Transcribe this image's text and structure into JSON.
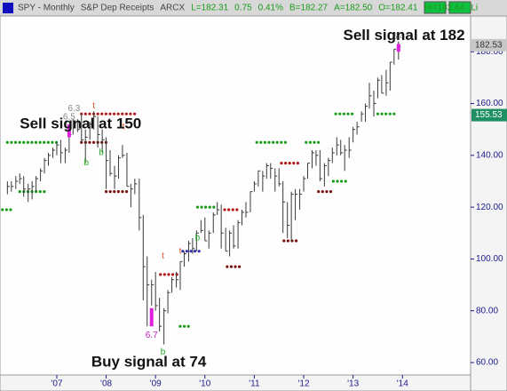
{
  "header": {
    "symbol": "SPY - Monthly",
    "name": "S&P Dep Receipts",
    "exchange": "ARCX",
    "quote": [
      "L=182.31",
      "0.75",
      "0.41%",
      "B=182.27",
      "A=182.50",
      "O=182.41",
      "Hi=182.64",
      "Li"
    ]
  },
  "chart_data": {
    "type": "ohlc",
    "annotations": [
      {
        "text": "Sell signal at 150",
        "x": 2006.25,
        "y": 152
      },
      {
        "text": "Sell signal at 182",
        "x": 2012.8,
        "y": 186
      },
      {
        "text": "Buy signal at 74",
        "x": 2007.7,
        "y": 60
      }
    ],
    "x": [
      2006.0,
      2006.08,
      2006.17,
      2006.25,
      2006.33,
      2006.42,
      2006.5,
      2006.58,
      2006.67,
      2006.75,
      2006.83,
      2006.92,
      2007.0,
      2007.08,
      2007.17,
      2007.25,
      2007.33,
      2007.42,
      2007.5,
      2007.58,
      2007.67,
      2007.75,
      2007.83,
      2007.92,
      2008.0,
      2008.08,
      2008.17,
      2008.25,
      2008.33,
      2008.42,
      2008.5,
      2008.58,
      2008.67,
      2008.75,
      2008.83,
      2008.92,
      2009.0,
      2009.08,
      2009.17,
      2009.25,
      2009.33,
      2009.42,
      2009.5,
      2009.58,
      2009.67,
      2009.75,
      2009.83,
      2009.92,
      2010.0,
      2010.08,
      2010.17,
      2010.25,
      2010.33,
      2010.42,
      2010.5,
      2010.58,
      2010.67,
      2010.75,
      2010.83,
      2010.92,
      2011.0,
      2011.08,
      2011.17,
      2011.25,
      2011.33,
      2011.42,
      2011.5,
      2011.58,
      2011.67,
      2011.75,
      2011.83,
      2011.92,
      2012.0,
      2012.08,
      2012.17,
      2012.25,
      2012.33,
      2012.42,
      2012.5,
      2012.58,
      2012.67,
      2012.75,
      2012.83,
      2012.92,
      2013.0,
      2013.08,
      2013.17,
      2013.25,
      2013.33,
      2013.42,
      2013.5,
      2013.58,
      2013.67,
      2013.75,
      2013.83,
      2013.92
    ],
    "high": [
      130,
      130,
      132,
      133,
      132,
      129,
      130,
      132,
      135,
      139,
      141,
      143,
      145,
      146,
      143,
      150,
      154,
      154,
      156,
      150,
      153,
      157,
      155,
      150,
      147,
      142,
      136,
      140,
      144,
      141,
      129,
      131,
      131,
      117,
      101,
      92,
      95,
      85,
      81,
      88,
      93,
      95,
      99,
      103,
      107,
      108,
      111,
      115,
      116,
      111,
      118,
      122,
      121,
      112,
      111,
      113,
      115,
      119,
      122,
      126,
      130,
      134,
      134,
      137,
      137,
      135,
      135,
      130,
      122,
      126,
      127,
      127,
      132,
      137,
      142,
      142,
      142,
      137,
      139,
      143,
      147,
      146,
      144,
      147,
      151,
      153,
      157,
      160,
      168,
      165,
      170,
      171,
      173,
      176,
      181,
      184
    ],
    "low": [
      125,
      126,
      127,
      129,
      124,
      122,
      123,
      126,
      130,
      133,
      136,
      139,
      140,
      137,
      137,
      141,
      148,
      149,
      145,
      137,
      146,
      150,
      143,
      141,
      127,
      132,
      127,
      131,
      139,
      128,
      120,
      125,
      111,
      84,
      74,
      82,
      80,
      72,
      67,
      79,
      87,
      89,
      88,
      97,
      99,
      102,
      103,
      110,
      107,
      104,
      110,
      117,
      104,
      103,
      101,
      104,
      104,
      113,
      116,
      118,
      126,
      128,
      126,
      131,
      131,
      126,
      128,
      110,
      108,
      107,
      115,
      119,
      126,
      131,
      135,
      136,
      130,
      128,
      132,
      137,
      140,
      140,
      134,
      139,
      145,
      148,
      153,
      153,
      158,
      155,
      162,
      164,
      163,
      165,
      175,
      177
    ],
    "close": [
      128,
      128,
      130,
      131,
      127,
      127,
      128,
      131,
      134,
      138,
      140,
      142,
      144,
      141,
      142,
      148,
      153,
      150,
      146,
      147,
      152,
      155,
      148,
      146,
      138,
      133,
      132,
      139,
      140,
      128,
      127,
      129,
      116,
      97,
      90,
      90,
      82,
      74,
      80,
      87,
      92,
      92,
      99,
      102,
      106,
      104,
      110,
      111,
      107,
      110,
      117,
      119,
      110,
      103,
      110,
      105,
      114,
      118,
      118,
      126,
      129,
      134,
      132,
      136,
      135,
      132,
      129,
      122,
      113,
      125,
      125,
      125,
      131,
      137,
      141,
      140,
      131,
      136,
      138,
      141,
      144,
      141,
      142,
      142,
      150,
      151,
      156,
      159,
      163,
      160,
      169,
      164,
      168,
      176,
      181,
      182
    ],
    "bar_color": "#3a3a3a",
    "levels": [
      {
        "start": 2005.9,
        "end": 2006.1,
        "value": 119,
        "color": "#1a9b1a"
      },
      {
        "start": 2006.0,
        "end": 2007.0,
        "value": 145,
        "color": "#1a9b1a"
      },
      {
        "start": 2006.25,
        "end": 2006.8,
        "value": 126,
        "color": "#1a9b1a"
      },
      {
        "start": 2007.5,
        "end": 2008.0,
        "value": 145,
        "color": "#7a1010"
      },
      {
        "start": 2007.5,
        "end": 2008.65,
        "value": 156,
        "color": "#b01818"
      },
      {
        "start": 2008.0,
        "end": 2008.45,
        "value": 126,
        "color": "#7a1010"
      },
      {
        "start": 2009.1,
        "end": 2009.45,
        "value": 94,
        "color": "#b01818"
      },
      {
        "start": 2009.5,
        "end": 2009.7,
        "value": 74,
        "color": "#1a9b1a"
      },
      {
        "start": 2009.55,
        "end": 2009.9,
        "value": 103,
        "color": "#3030b0"
      },
      {
        "start": 2009.85,
        "end": 2010.25,
        "value": 120,
        "color": "#1a9b1a"
      },
      {
        "start": 2010.4,
        "end": 2010.7,
        "value": 119,
        "color": "#b01818"
      },
      {
        "start": 2010.45,
        "end": 2010.75,
        "value": 97,
        "color": "#7a1010"
      },
      {
        "start": 2011.05,
        "end": 2011.65,
        "value": 145,
        "color": "#1a9b1a"
      },
      {
        "start": 2011.55,
        "end": 2011.95,
        "value": 137,
        "color": "#b01818"
      },
      {
        "start": 2011.6,
        "end": 2011.85,
        "value": 107,
        "color": "#7a1010"
      },
      {
        "start": 2012.05,
        "end": 2012.3,
        "value": 145,
        "color": "#1a9b1a"
      },
      {
        "start": 2012.3,
        "end": 2012.6,
        "value": 126,
        "color": "#7a1010"
      },
      {
        "start": 2012.6,
        "end": 2012.9,
        "value": 130,
        "color": "#1a9b1a"
      },
      {
        "start": 2012.65,
        "end": 2013.05,
        "value": 156,
        "color": "#1a9b1a"
      },
      {
        "start": 2013.5,
        "end": 2013.9,
        "value": 156,
        "color": "#1a9b1a"
      }
    ],
    "signals": [
      {
        "x": 2007.25,
        "low": 147,
        "high": 152,
        "label": "6.5"
      },
      {
        "x": 2008.92,
        "low": 74,
        "high": 81,
        "label": "6.7"
      },
      {
        "x": 2013.92,
        "low": 180,
        "high": 183,
        "label": "6.4"
      }
    ],
    "signal_color": "#e020e0",
    "counts": [
      {
        "x": 2007.35,
        "y": 158,
        "label": "6.3"
      },
      {
        "x": 2007.75,
        "y": 159,
        "label": "t"
      },
      {
        "x": 2008.35,
        "y": 151,
        "label": "t"
      },
      {
        "x": 2009.15,
        "y": 101,
        "label": "t"
      },
      {
        "x": 2009.5,
        "y": 103,
        "label": "t"
      },
      {
        "x": 2007.6,
        "y": 137,
        "label": "b"
      },
      {
        "x": 2007.9,
        "y": 141,
        "label": "b"
      },
      {
        "x": 2009.15,
        "y": 64,
        "label": "b"
      },
      {
        "x": 2009.85,
        "y": 108,
        "label": "b"
      }
    ],
    "price_flags": [
      {
        "value": 182.53,
        "color": "#c8c8c8"
      },
      {
        "value": 155.53,
        "color": "#1f8f64"
      }
    ],
    "xlim": [
      2005.85,
      2015.38
    ],
    "xticks": [
      {
        "value": 2007,
        "label": "'07"
      },
      {
        "value": 2008,
        "label": "'08"
      },
      {
        "value": 2009,
        "label": "'09"
      },
      {
        "value": 2010,
        "label": "'10"
      },
      {
        "value": 2011,
        "label": "'11"
      },
      {
        "value": 2012,
        "label": "'12"
      },
      {
        "value": 2013,
        "label": "'13"
      },
      {
        "value": 2014,
        "label": "'14"
      }
    ],
    "ylim": [
      55.2,
      193.8
    ],
    "yticks": [
      {
        "value": 60,
        "label": "60.00"
      },
      {
        "value": 80,
        "label": "80.00"
      },
      {
        "value": 100,
        "label": "100.00"
      },
      {
        "value": 120,
        "label": "120.00"
      },
      {
        "value": 140,
        "label": "140.00"
      },
      {
        "value": 160,
        "label": "160.00"
      },
      {
        "value": 180,
        "label": "180.00"
      }
    ]
  }
}
